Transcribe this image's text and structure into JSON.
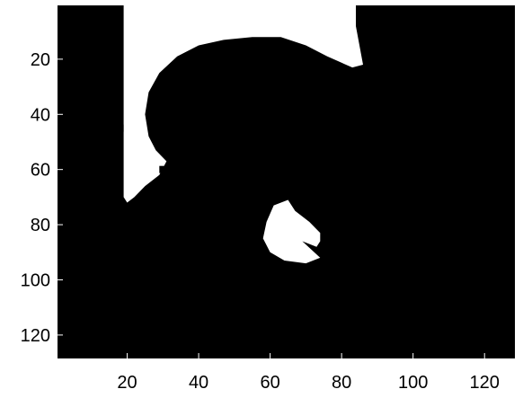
{
  "chart_data": {
    "type": "heatmap",
    "colormap": "gray",
    "image_size": [
      128,
      128
    ],
    "xlim": [
      0.5,
      128.5
    ],
    "ylim": [
      0.5,
      128.5
    ],
    "y_direction": "reversed",
    "x_ticks": [
      20,
      40,
      60,
      80,
      100,
      120
    ],
    "y_ticks": [
      20,
      40,
      60,
      80,
      100,
      120
    ],
    "x_tick_labels": [
      "20",
      "40",
      "60",
      "80",
      "100",
      "120"
    ],
    "y_tick_labels": [
      "20",
      "40",
      "60",
      "80",
      "100",
      "120"
    ],
    "background_value": 0,
    "regions": [
      {
        "name": "white region upper-left",
        "value": 1,
        "outline": [
          [
            19,
            0.5
          ],
          [
            84,
            0.5
          ],
          [
            84,
            8
          ],
          [
            85,
            15
          ],
          [
            86,
            22
          ],
          [
            83,
            23
          ],
          [
            76,
            19
          ],
          [
            70,
            15
          ],
          [
            63,
            12
          ],
          [
            55,
            12
          ],
          [
            47,
            13
          ],
          [
            40,
            15
          ],
          [
            34,
            19
          ],
          [
            29,
            25
          ],
          [
            26,
            32
          ],
          [
            25,
            40
          ],
          [
            26,
            48
          ],
          [
            28,
            53
          ],
          [
            31,
            57
          ],
          [
            29,
            62
          ],
          [
            25,
            66
          ],
          [
            22,
            70
          ],
          [
            20,
            72
          ],
          [
            19,
            70
          ]
        ]
      },
      {
        "name": "white blob lower-center",
        "value": 1,
        "outline": [
          [
            61,
            73
          ],
          [
            65,
            71
          ],
          [
            67,
            75
          ],
          [
            71,
            79
          ],
          [
            74,
            83
          ],
          [
            74,
            86
          ],
          [
            73,
            88
          ],
          [
            69,
            86
          ],
          [
            74,
            92
          ],
          [
            70,
            94
          ],
          [
            64,
            93
          ],
          [
            60,
            90
          ],
          [
            58,
            85
          ],
          [
            59,
            79
          ]
        ]
      }
    ],
    "dark_specks": [
      [
        18,
        45
      ],
      [
        30,
        60
      ]
    ]
  }
}
